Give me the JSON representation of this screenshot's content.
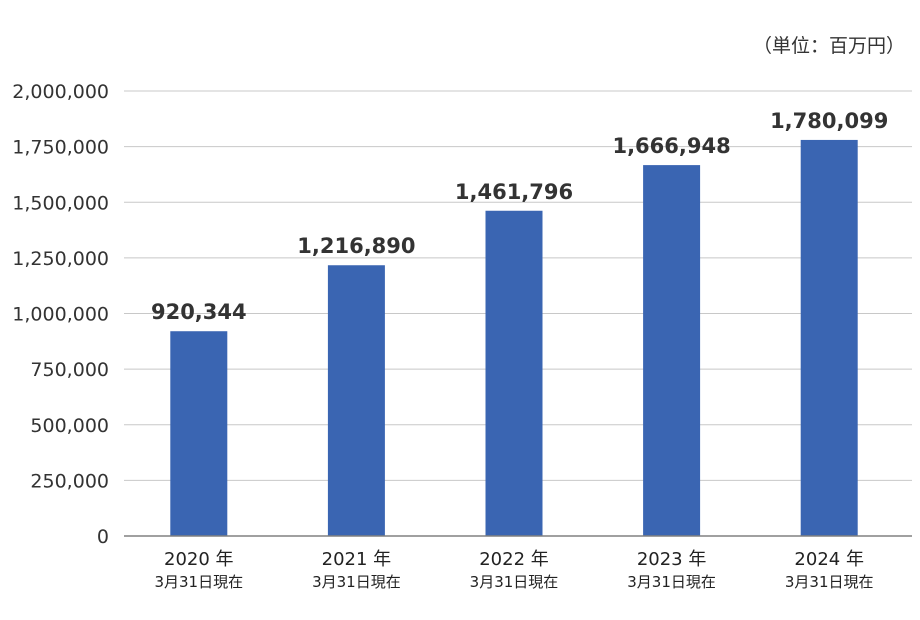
{
  "chart_data": {
    "type": "bar",
    "unit_label": "（単位：百万円）",
    "categories": [
      {
        "year": "2020 年",
        "sub": "3月31日現在"
      },
      {
        "year": "2021 年",
        "sub": "3月31日現在"
      },
      {
        "year": "2022 年",
        "sub": "3月31日現在"
      },
      {
        "year": "2023 年",
        "sub": "3月31日現在"
      },
      {
        "year": "2024 年",
        "sub": "3月31日現在"
      }
    ],
    "values": [
      920344,
      1216890,
      1461796,
      1666948,
      1780099
    ],
    "value_labels": [
      "920,344",
      "1,216,890",
      "1,461,796",
      "1,666,948",
      "1,780,099"
    ],
    "ylim": [
      0,
      2000000
    ],
    "yticks": [
      0,
      250000,
      500000,
      750000,
      1000000,
      1250000,
      1500000,
      1750000,
      2000000
    ],
    "ytick_labels": [
      "0",
      "250,000",
      "500,000",
      "750,000",
      "1,000,000",
      "1,250,000",
      "1,500,000",
      "1,750,000",
      "2,000,000"
    ],
    "grid": true,
    "bar_color": "#3a65b2"
  }
}
